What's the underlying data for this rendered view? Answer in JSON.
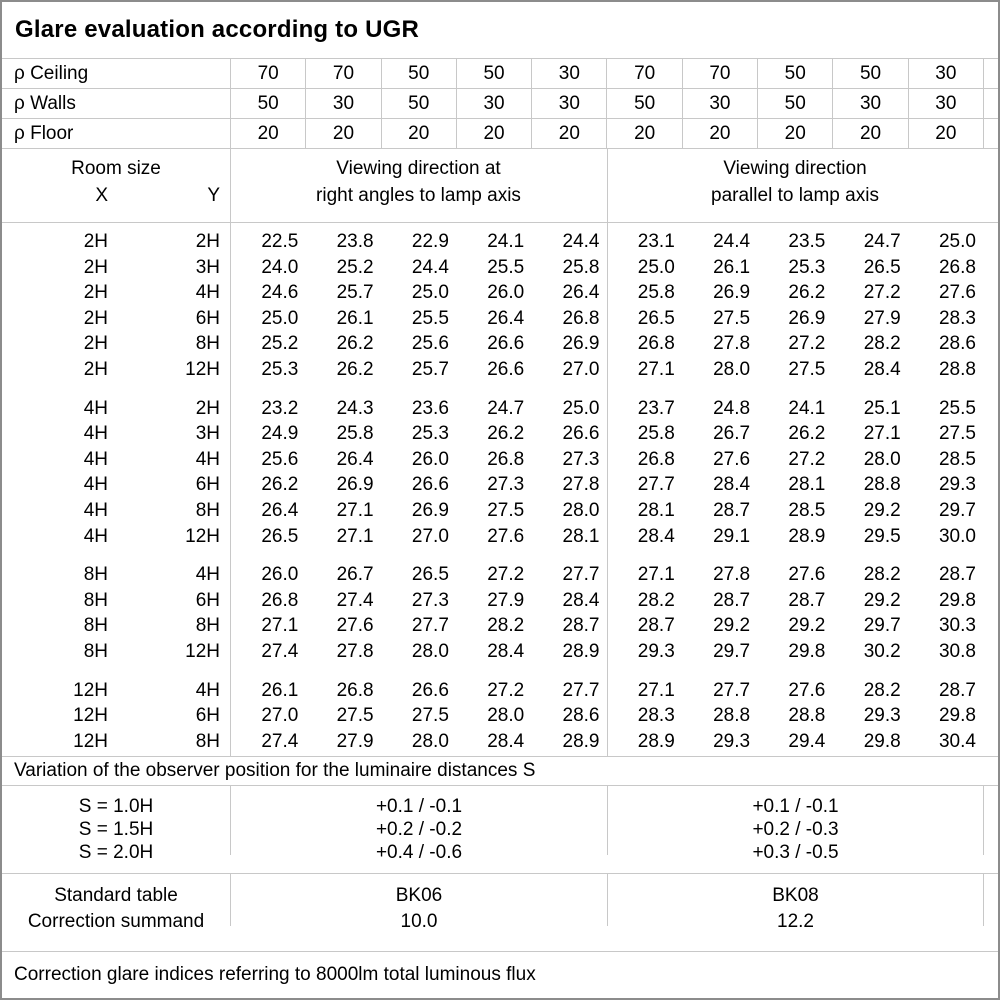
{
  "title": "Glare evaluation according to UGR",
  "reflectance": {
    "rows": [
      {
        "label": "ρ Ceiling",
        "values": [
          "70",
          "70",
          "50",
          "50",
          "30",
          "70",
          "70",
          "50",
          "50",
          "30"
        ]
      },
      {
        "label": "ρ Walls",
        "values": [
          "50",
          "30",
          "50",
          "30",
          "30",
          "50",
          "30",
          "50",
          "30",
          "30"
        ]
      },
      {
        "label": "ρ Floor",
        "values": [
          "20",
          "20",
          "20",
          "20",
          "20",
          "20",
          "20",
          "20",
          "20",
          "20"
        ]
      }
    ]
  },
  "header": {
    "room_size_label": "Room size",
    "x_label": "X",
    "y_label": "Y",
    "left_group_line1": "Viewing direction at",
    "left_group_line2": "right angles to lamp axis",
    "right_group_line1": "Viewing direction",
    "right_group_line2": "parallel to lamp axis"
  },
  "ugr_groups": [
    {
      "rows": [
        {
          "x": "2H",
          "y": "2H",
          "values": [
            "22.5",
            "23.8",
            "22.9",
            "24.1",
            "24.4",
            "23.1",
            "24.4",
            "23.5",
            "24.7",
            "25.0"
          ]
        },
        {
          "x": "2H",
          "y": "3H",
          "values": [
            "24.0",
            "25.2",
            "24.4",
            "25.5",
            "25.8",
            "25.0",
            "26.1",
            "25.3",
            "26.5",
            "26.8"
          ]
        },
        {
          "x": "2H",
          "y": "4H",
          "values": [
            "24.6",
            "25.7",
            "25.0",
            "26.0",
            "26.4",
            "25.8",
            "26.9",
            "26.2",
            "27.2",
            "27.6"
          ]
        },
        {
          "x": "2H",
          "y": "6H",
          "values": [
            "25.0",
            "26.1",
            "25.5",
            "26.4",
            "26.8",
            "26.5",
            "27.5",
            "26.9",
            "27.9",
            "28.3"
          ]
        },
        {
          "x": "2H",
          "y": "8H",
          "values": [
            "25.2",
            "26.2",
            "25.6",
            "26.6",
            "26.9",
            "26.8",
            "27.8",
            "27.2",
            "28.2",
            "28.6"
          ]
        },
        {
          "x": "2H",
          "y": "12H",
          "values": [
            "25.3",
            "26.2",
            "25.7",
            "26.6",
            "27.0",
            "27.1",
            "28.0",
            "27.5",
            "28.4",
            "28.8"
          ]
        }
      ]
    },
    {
      "rows": [
        {
          "x": "4H",
          "y": "2H",
          "values": [
            "23.2",
            "24.3",
            "23.6",
            "24.7",
            "25.0",
            "23.7",
            "24.8",
            "24.1",
            "25.1",
            "25.5"
          ]
        },
        {
          "x": "4H",
          "y": "3H",
          "values": [
            "24.9",
            "25.8",
            "25.3",
            "26.2",
            "26.6",
            "25.8",
            "26.7",
            "26.2",
            "27.1",
            "27.5"
          ]
        },
        {
          "x": "4H",
          "y": "4H",
          "values": [
            "25.6",
            "26.4",
            "26.0",
            "26.8",
            "27.3",
            "26.8",
            "27.6",
            "27.2",
            "28.0",
            "28.5"
          ]
        },
        {
          "x": "4H",
          "y": "6H",
          "values": [
            "26.2",
            "26.9",
            "26.6",
            "27.3",
            "27.8",
            "27.7",
            "28.4",
            "28.1",
            "28.8",
            "29.3"
          ]
        },
        {
          "x": "4H",
          "y": "8H",
          "values": [
            "26.4",
            "27.1",
            "26.9",
            "27.5",
            "28.0",
            "28.1",
            "28.7",
            "28.5",
            "29.2",
            "29.7"
          ]
        },
        {
          "x": "4H",
          "y": "12H",
          "values": [
            "26.5",
            "27.1",
            "27.0",
            "27.6",
            "28.1",
            "28.4",
            "29.1",
            "28.9",
            "29.5",
            "30.0"
          ]
        }
      ]
    },
    {
      "rows": [
        {
          "x": "8H",
          "y": "4H",
          "values": [
            "26.0",
            "26.7",
            "26.5",
            "27.2",
            "27.7",
            "27.1",
            "27.8",
            "27.6",
            "28.2",
            "28.7"
          ]
        },
        {
          "x": "8H",
          "y": "6H",
          "values": [
            "26.8",
            "27.4",
            "27.3",
            "27.9",
            "28.4",
            "28.2",
            "28.7",
            "28.7",
            "29.2",
            "29.8"
          ]
        },
        {
          "x": "8H",
          "y": "8H",
          "values": [
            "27.1",
            "27.6",
            "27.7",
            "28.2",
            "28.7",
            "28.7",
            "29.2",
            "29.2",
            "29.7",
            "30.3"
          ]
        },
        {
          "x": "8H",
          "y": "12H",
          "values": [
            "27.4",
            "27.8",
            "28.0",
            "28.4",
            "28.9",
            "29.3",
            "29.7",
            "29.8",
            "30.2",
            "30.8"
          ]
        }
      ]
    },
    {
      "rows": [
        {
          "x": "12H",
          "y": "4H",
          "values": [
            "26.1",
            "26.8",
            "26.6",
            "27.2",
            "27.7",
            "27.1",
            "27.7",
            "27.6",
            "28.2",
            "28.7"
          ]
        },
        {
          "x": "12H",
          "y": "6H",
          "values": [
            "27.0",
            "27.5",
            "27.5",
            "28.0",
            "28.6",
            "28.3",
            "28.8",
            "28.8",
            "29.3",
            "29.8"
          ]
        },
        {
          "x": "12H",
          "y": "8H",
          "values": [
            "27.4",
            "27.9",
            "28.0",
            "28.4",
            "28.9",
            "28.9",
            "29.3",
            "29.4",
            "29.8",
            "30.4"
          ]
        }
      ]
    }
  ],
  "variation_note": "Variation of the observer position for the luminaire distances S",
  "s_rows": [
    {
      "label": "S = 1.0H",
      "left": "+0.1 / -0.1",
      "right": "+0.1 / -0.1"
    },
    {
      "label": "S = 1.5H",
      "left": "+0.2 / -0.2",
      "right": "+0.2 / -0.3"
    },
    {
      "label": "S = 2.0H",
      "left": "+0.4 / -0.6",
      "right": "+0.3 / -0.5"
    }
  ],
  "standard": {
    "table_label": "Standard table",
    "summand_label": "Correction summand",
    "left": {
      "table": "BK06",
      "summand": "10.0"
    },
    "right": {
      "table": "BK08",
      "summand": "12.2"
    }
  },
  "footer_note": "Correction glare indices referring to 8000lm total luminous flux"
}
